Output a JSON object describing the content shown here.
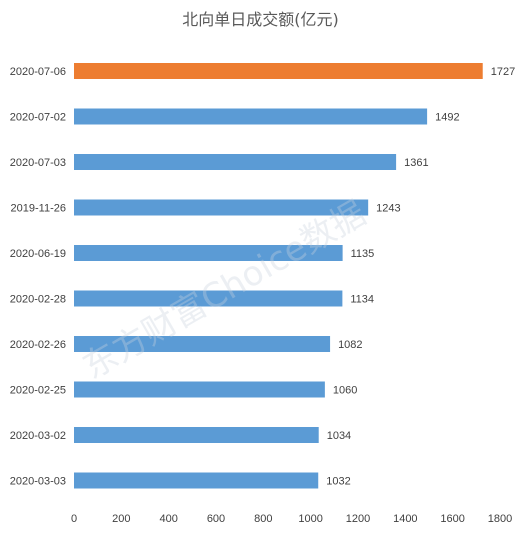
{
  "chart_data": {
    "type": "bar",
    "orientation": "horizontal",
    "title": "北向单日成交额(亿元)",
    "categories": [
      "2020-07-06",
      "2020-07-02",
      "2020-07-03",
      "2019-11-26",
      "2020-06-19",
      "2020-02-28",
      "2020-02-26",
      "2020-02-25",
      "2020-03-02",
      "2020-03-03"
    ],
    "values": [
      1727,
      1492,
      1361,
      1243,
      1135,
      1134,
      1082,
      1060,
      1034,
      1032
    ],
    "highlight_index": 0,
    "colors": {
      "default": "#5b9bd5",
      "highlight": "#ed7d31"
    },
    "xlim": [
      0,
      1800
    ],
    "xticks": [
      0,
      200,
      400,
      600,
      800,
      1000,
      1200,
      1400,
      1600,
      1800
    ],
    "grid": false,
    "legend": "none",
    "watermark": "东方财富Choice数据"
  }
}
